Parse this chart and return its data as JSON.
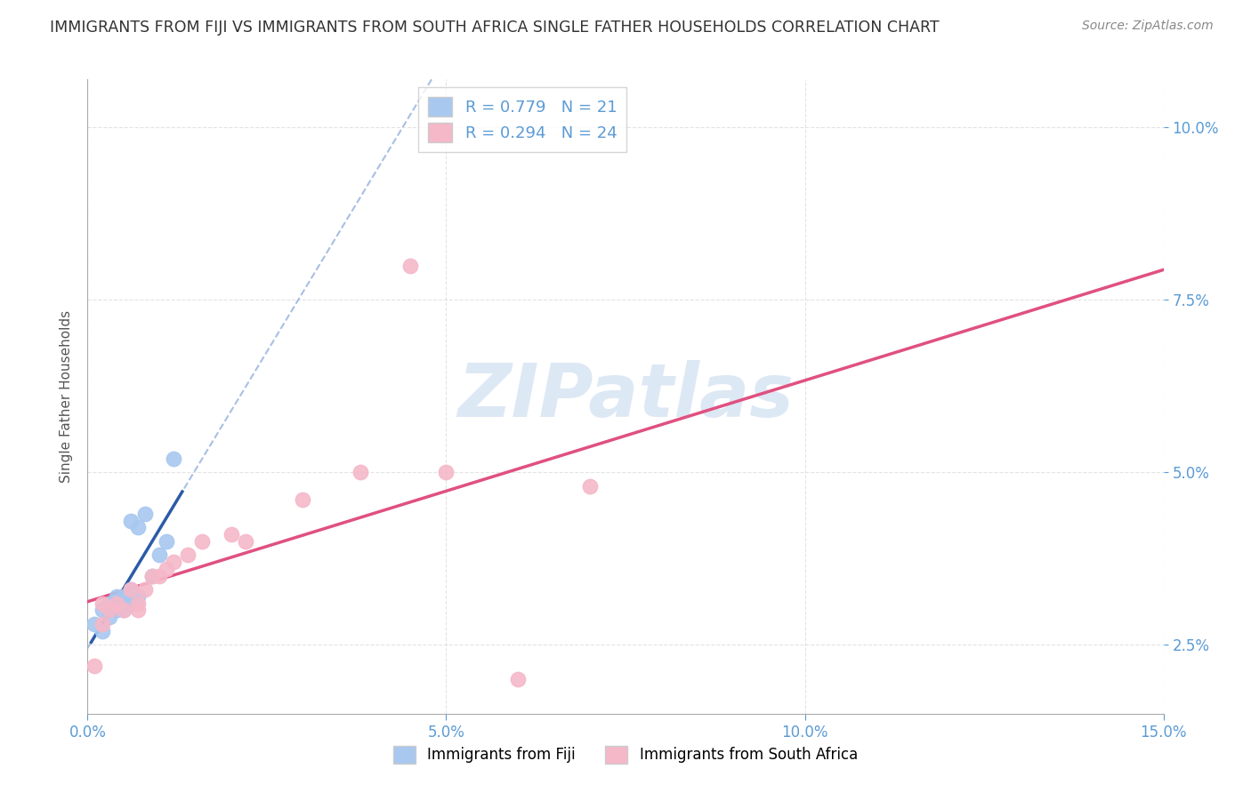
{
  "title": "IMMIGRANTS FROM FIJI VS IMMIGRANTS FROM SOUTH AFRICA SINGLE FATHER HOUSEHOLDS CORRELATION CHART",
  "source": "Source: ZipAtlas.com",
  "ylabel": "Single Father Households",
  "xlim": [
    0.0,
    0.15
  ],
  "ylim": [
    0.015,
    0.107
  ],
  "fiji_R": 0.779,
  "fiji_N": 21,
  "sa_R": 0.294,
  "sa_N": 24,
  "fiji_color": "#A8C8F0",
  "fiji_line_color": "#2B5BA8",
  "fiji_dash_color": "#A0B8E0",
  "sa_color": "#F5B8C8",
  "sa_line_color": "#E05080",
  "watermark_text": "ZIPatlas",
  "watermark_color": "#DDE8F5",
  "fiji_x": [
    0.001,
    0.002,
    0.002,
    0.003,
    0.003,
    0.004,
    0.004,
    0.004,
    0.005,
    0.005,
    0.005,
    0.006,
    0.006,
    0.006,
    0.007,
    0.007,
    0.008,
    0.009,
    0.01,
    0.011,
    0.012
  ],
  "fiji_y": [
    0.028,
    0.027,
    0.03,
    0.029,
    0.031,
    0.03,
    0.031,
    0.032,
    0.03,
    0.031,
    0.032,
    0.031,
    0.033,
    0.043,
    0.032,
    0.042,
    0.044,
    0.035,
    0.038,
    0.04,
    0.052
  ],
  "sa_x": [
    0.001,
    0.002,
    0.002,
    0.003,
    0.004,
    0.005,
    0.006,
    0.007,
    0.007,
    0.008,
    0.009,
    0.01,
    0.011,
    0.012,
    0.014,
    0.016,
    0.02,
    0.022,
    0.03,
    0.038,
    0.045,
    0.05,
    0.06,
    0.07
  ],
  "sa_y": [
    0.022,
    0.028,
    0.031,
    0.03,
    0.031,
    0.03,
    0.033,
    0.03,
    0.031,
    0.033,
    0.035,
    0.035,
    0.036,
    0.037,
    0.038,
    0.04,
    0.041,
    0.04,
    0.046,
    0.05,
    0.08,
    0.05,
    0.02,
    0.048
  ],
  "background_color": "#FFFFFF",
  "grid_color": "#DDDDDD",
  "title_fontsize": 12.5,
  "axis_label_fontsize": 11,
  "tick_fontsize": 12,
  "legend_fontsize": 13
}
